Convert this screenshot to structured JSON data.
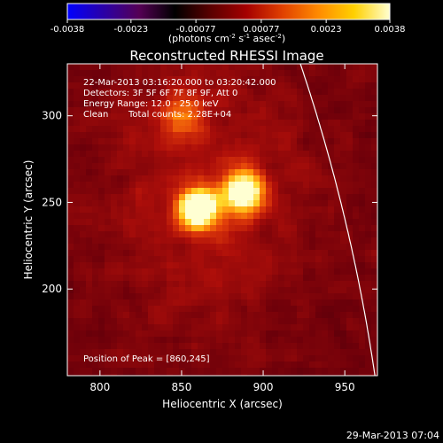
{
  "colorbar": {
    "tick_labels": [
      "-0.0038",
      "-0.0023",
      "-0.00077",
      "0.00077",
      "0.0023",
      "0.0038"
    ],
    "ticks": [
      -0.0038,
      -0.0023,
      -0.00077,
      0.00077,
      0.0023,
      0.0038
    ],
    "range": [
      -0.0038,
      0.0038
    ],
    "units_prefix": "(photons cm",
    "units_exp1": "-2",
    "units_mid": " s",
    "units_exp2": "-1",
    "units_mid2": " asec",
    "units_exp3": "-2",
    "units_suffix": ")",
    "colormap": [
      "#0000ff",
      "#2a00a8",
      "#550055",
      "#000000",
      "#5a0000",
      "#a50000",
      "#e04000",
      "#ff8a00",
      "#ffd000",
      "#ffffd0"
    ]
  },
  "chart_data": {
    "type": "heatmap",
    "title": "Reconstructed RHESSI Image",
    "xlabel": "Heliocentric X (arcsec)",
    "ylabel": "Heliocentric Y (arcsec)",
    "xlim": [
      780,
      970
    ],
    "ylim": [
      150,
      330
    ],
    "xticks": [
      800,
      850,
      900,
      950
    ],
    "yticks": [
      200,
      250,
      300
    ],
    "annotations": {
      "time_range": "22-Mar-2013 03:16:20.000 to 03:20:42.000",
      "detectors": "Detectors: 3F 5F 6F 7F 8F 9F, Att 0",
      "energy_range": "Energy Range: 12.0 - 25.0 keV",
      "clean": "Clean",
      "total_counts": "Total counts: 2.28E+04",
      "peak_position": "Position of Peak = [860,245]"
    },
    "sources": [
      {
        "x": 860,
        "y": 246,
        "intensity": 1.0,
        "sigma": 8
      },
      {
        "x": 888,
        "y": 256,
        "intensity": 0.82,
        "sigma": 9
      },
      {
        "x": 850,
        "y": 300,
        "intensity": 0.35,
        "sigma": 10
      }
    ],
    "limb": {
      "center": [
        0,
        0
      ],
      "radius_arcsec": 980
    }
  },
  "timestamp": "29-Mar-2013 07:04"
}
